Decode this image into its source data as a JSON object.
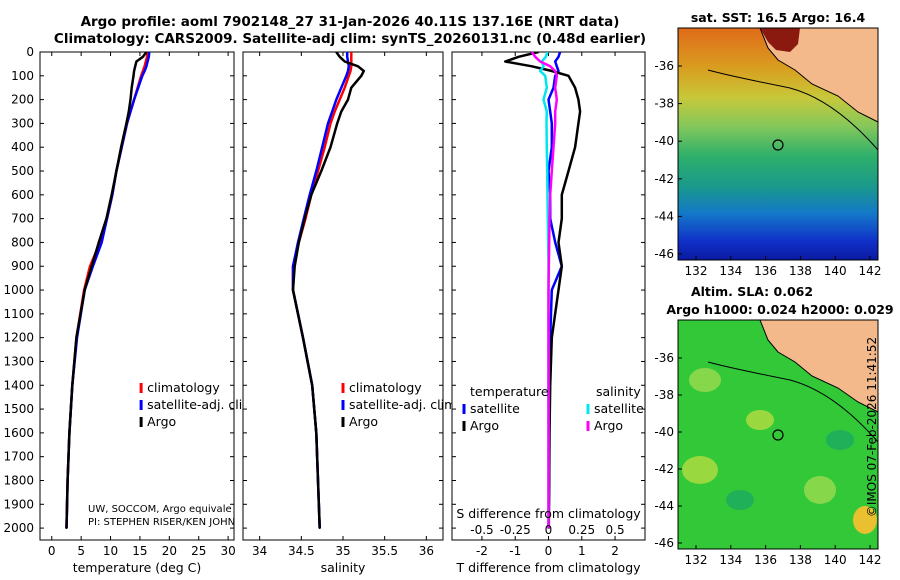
{
  "header": {
    "line1": "Argo profile: aoml 7902148_27 31-Jan-2026 40.11S 137.16E (NRT data)",
    "line2": "Climatology: CARS2009. Satellite-adj clim: synTS_20260131.nc (0.48d earlier)"
  },
  "colors": {
    "climatology": "#ff0000",
    "satellite": "#0000ff",
    "argo": "#000000",
    "sat_temp": "#00e5ee",
    "sat_sal": "#ff00ff",
    "land": "#f4b98a"
  },
  "depth_axis": {
    "ticks": [
      0,
      100,
      200,
      300,
      400,
      500,
      600,
      700,
      800,
      900,
      1000,
      1100,
      1200,
      1300,
      1400,
      1500,
      1600,
      1700,
      1800,
      1900,
      2000
    ],
    "range": [
      0,
      2050
    ]
  },
  "chart_data": [
    {
      "type": "line",
      "name": "temperature",
      "xlabel": "temperature (deg C)",
      "xlim": [
        -2,
        31
      ],
      "xticks": [
        0,
        5,
        10,
        15,
        20,
        25,
        30
      ],
      "legend": [
        "climatology",
        "satellite-adj. clim.",
        "Argo"
      ],
      "credit": [
        "UW, SOCCOM, Argo equivale",
        "PI: STEPHEN RISER/KEN JOHN"
      ],
      "depth": [
        0,
        20,
        40,
        60,
        80,
        100,
        150,
        200,
        250,
        300,
        400,
        500,
        600,
        700,
        800,
        900,
        1000,
        1200,
        1400,
        1600,
        1800,
        2000
      ],
      "series": [
        {
          "name": "climatology",
          "values": [
            16.3,
            16.2,
            16.0,
            15.8,
            15.5,
            15.2,
            14.6,
            14.0,
            13.4,
            12.8,
            11.9,
            11.0,
            10.3,
            9.4,
            8.2,
            6.5,
            5.5,
            4.2,
            3.5,
            3.0,
            2.7,
            2.5
          ]
        },
        {
          "name": "satellite-adj. clim.",
          "values": [
            16.6,
            16.5,
            16.3,
            16.1,
            15.8,
            15.4,
            14.7,
            14.0,
            13.4,
            12.8,
            11.9,
            11.0,
            10.3,
            9.4,
            8.5,
            7.0,
            5.6,
            4.3,
            3.5,
            3.0,
            2.7,
            2.5
          ]
        },
        {
          "name": "Argo",
          "values": [
            16.1,
            15.5,
            14.4,
            14.2,
            14.0,
            13.9,
            13.6,
            13.4,
            13.1,
            12.7,
            11.8,
            11.0,
            10.2,
            9.3,
            8.0,
            6.8,
            5.6,
            4.2,
            3.5,
            3.0,
            2.7,
            2.5
          ]
        }
      ]
    },
    {
      "type": "line",
      "name": "salinity",
      "xlabel": "salinity",
      "xlim": [
        33.8,
        36.2
      ],
      "xticks": [
        34,
        34.5,
        35,
        35.5,
        36
      ],
      "xticklabels": [
        "34",
        "34.5",
        "35",
        "35.5",
        "36"
      ],
      "legend": [
        "climatology",
        "satellite-adj. clim.",
        "Argo"
      ],
      "depth": [
        0,
        20,
        40,
        60,
        80,
        100,
        150,
        200,
        250,
        300,
        400,
        500,
        600,
        700,
        800,
        900,
        1000,
        1200,
        1400,
        1600,
        1800,
        2000
      ],
      "series": [
        {
          "name": "climatology",
          "values": [
            35.1,
            35.1,
            35.1,
            35.1,
            35.09,
            35.07,
            35.02,
            34.96,
            34.9,
            34.85,
            34.78,
            34.7,
            34.62,
            34.55,
            34.47,
            34.4,
            34.4,
            34.52,
            34.63,
            34.68,
            34.7,
            34.72
          ]
        },
        {
          "name": "satellite-adj. clim.",
          "values": [
            35.05,
            35.05,
            35.06,
            35.07,
            35.06,
            35.04,
            34.98,
            34.92,
            34.87,
            34.82,
            34.75,
            34.68,
            34.6,
            34.53,
            34.46,
            34.4,
            34.4,
            34.52,
            34.63,
            34.68,
            34.7,
            34.72
          ]
        },
        {
          "name": "Argo",
          "values": [
            34.92,
            34.96,
            35.02,
            35.18,
            35.25,
            35.22,
            35.1,
            35.06,
            34.98,
            34.93,
            34.85,
            34.74,
            34.62,
            34.54,
            34.47,
            34.42,
            34.4,
            34.52,
            34.63,
            34.68,
            34.7,
            34.72
          ]
        }
      ]
    },
    {
      "type": "line",
      "name": "difference",
      "xlabel": "T difference from climatology",
      "xlabel2": "S difference from climatology",
      "xlim": [
        -2.9,
        2.9
      ],
      "xticks": [
        -2,
        -1,
        0,
        1,
        2
      ],
      "xticklabels": [
        "-2",
        "-1",
        "0",
        "1",
        "2"
      ],
      "xticks2": [
        "-0.5",
        "-0.25",
        "0",
        "0.25",
        "0.5"
      ],
      "legend_titles": [
        "temperature",
        "salinity"
      ],
      "legend_temperature": [
        "satellite",
        "Argo"
      ],
      "legend_salinity": [
        "satellite",
        "Argo"
      ],
      "depth": [
        0,
        20,
        40,
        60,
        80,
        100,
        150,
        200,
        250,
        300,
        400,
        500,
        600,
        700,
        800,
        900,
        1000,
        1200,
        1400,
        1600,
        1800,
        2000
      ],
      "series": [
        {
          "name": "T satellite",
          "values": [
            0.35,
            0.3,
            0.2,
            0.25,
            0.3,
            0.2,
            0.15,
            0.0,
            0.05,
            0.1,
            0.1,
            0.0,
            0.05,
            0.05,
            0.2,
            0.4,
            0.1,
            0.05,
            0.03,
            0.02,
            0.02,
            0.0
          ]
        },
        {
          "name": "T Argo",
          "values": [
            -0.3,
            -0.9,
            -1.3,
            -0.5,
            0.1,
            0.6,
            0.8,
            0.9,
            0.95,
            0.9,
            0.8,
            0.6,
            0.4,
            0.4,
            0.3,
            0.4,
            0.3,
            0.1,
            0.05,
            0.03,
            0.02,
            0.01
          ]
        },
        {
          "name": "S satellite",
          "values": [
            -0.03,
            -0.08,
            -0.2,
            -0.15,
            -0.25,
            -0.1,
            -0.05,
            -0.15,
            -0.05,
            -0.06,
            -0.05,
            -0.04,
            -0.03,
            -0.02,
            -0.01,
            0.0,
            0.0,
            0.0,
            0.0,
            0.0,
            0.0,
            0.0
          ]
        },
        {
          "name": "S Argo",
          "values": [
            -0.5,
            -0.4,
            -0.25,
            0.05,
            0.2,
            0.25,
            0.2,
            0.25,
            0.2,
            0.2,
            0.15,
            0.1,
            0.05,
            0.03,
            0.02,
            0.01,
            0.0,
            0.0,
            0.0,
            0.0,
            0.0,
            0.0
          ]
        }
      ]
    }
  ],
  "maps": {
    "sst": {
      "title": "sat. SST: 16.5 Argo: 16.4",
      "lat_ticks": [
        "-36",
        "-38",
        "-40",
        "-42",
        "-44",
        "-46"
      ],
      "lon_ticks": [
        "132",
        "134",
        "136",
        "138",
        "140",
        "142"
      ],
      "argo_lon": 137.16,
      "argo_lat": -40.11
    },
    "sla": {
      "title1": "Altim. SLA: 0.062",
      "title2": "Argo h1000: 0.024 h2000: 0.029",
      "lat_ticks": [
        "-36",
        "-38",
        "-40",
        "-42",
        "-44",
        "-46"
      ],
      "lon_ticks": [
        "132",
        "134",
        "136",
        "138",
        "140",
        "142"
      ],
      "argo_lon": 137.16,
      "argo_lat": -40.11
    }
  },
  "footer": {
    "stamp": "©IMOS 07-Feb-2026 11:41:52"
  }
}
